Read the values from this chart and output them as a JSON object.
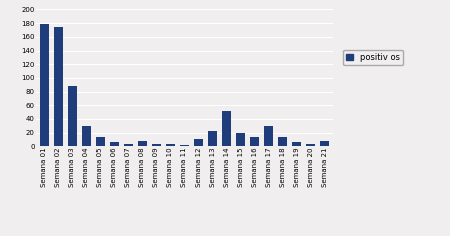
{
  "categories": [
    "Semana 01",
    "Semana 02",
    "Semana 03",
    "Semana 04",
    "Semana 05",
    "Semana 06",
    "Semana 07",
    "Semana 08",
    "Semana 09",
    "Semana 10",
    "Semana 11",
    "Semana 12",
    "Semana 13",
    "Semana 14",
    "Semana 15",
    "Semana 16",
    "Semana 17",
    "Semana 18",
    "Semana 19",
    "Semana 20",
    "Semana 21"
  ],
  "values": [
    179,
    174,
    88,
    30,
    13,
    6,
    4,
    8,
    3,
    3,
    2,
    10,
    23,
    52,
    19,
    13,
    29,
    13,
    6,
    4,
    8
  ],
  "bar_color": "#1f3d7a",
  "ylim": [
    0,
    200
  ],
  "yticks": [
    0,
    20,
    40,
    60,
    80,
    100,
    120,
    140,
    160,
    180,
    200
  ],
  "legend_label": "positiv os",
  "background_color": "#f0eeee",
  "plot_bg_color": "#f0eeee",
  "grid_color": "#ffffff",
  "tick_fontsize": 5.0,
  "legend_fontsize": 6.0,
  "bar_width": 0.65
}
